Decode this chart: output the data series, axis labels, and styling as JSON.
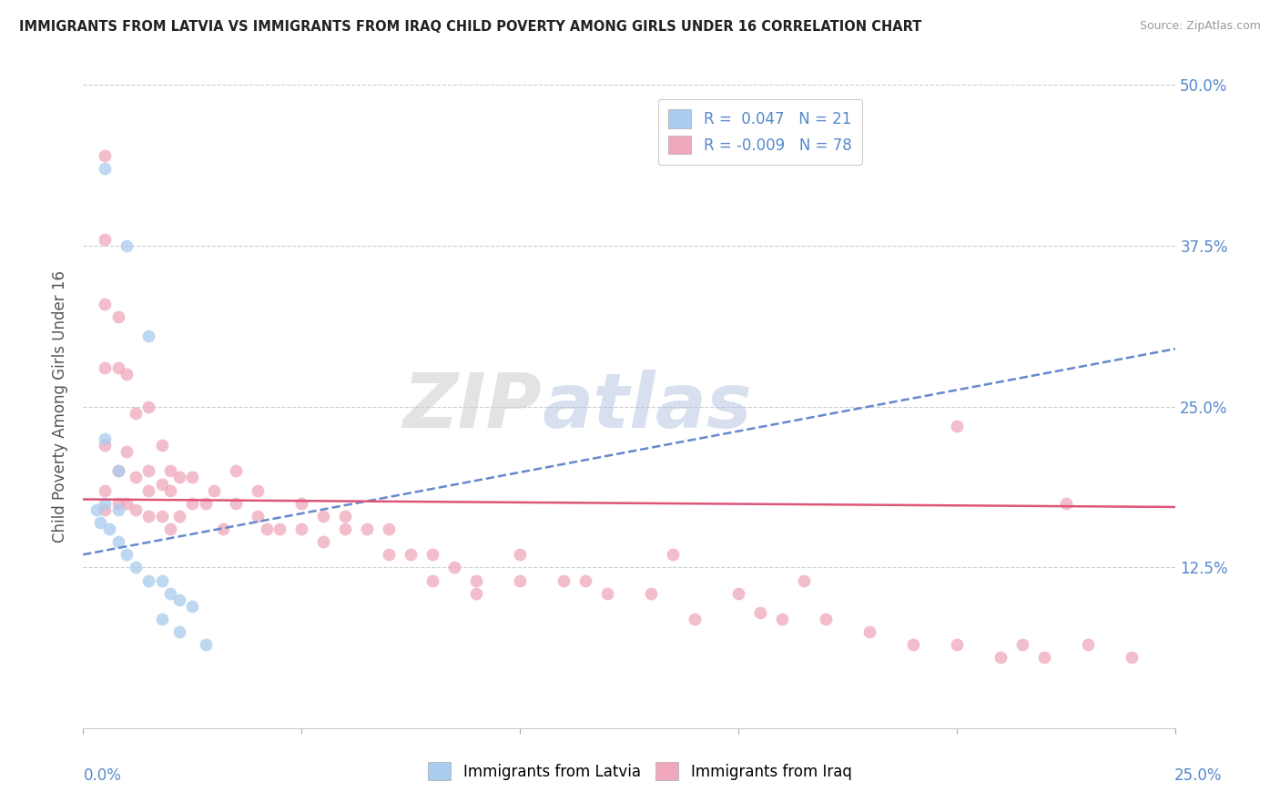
{
  "title": "IMMIGRANTS FROM LATVIA VS IMMIGRANTS FROM IRAQ CHILD POVERTY AMONG GIRLS UNDER 16 CORRELATION CHART",
  "source": "Source: ZipAtlas.com",
  "ylabel": "Child Poverty Among Girls Under 16",
  "xlim": [
    0.0,
    0.25
  ],
  "ylim": [
    0.0,
    0.5
  ],
  "yticks": [
    0.0,
    0.125,
    0.25,
    0.375,
    0.5
  ],
  "ytick_labels": [
    "",
    "12.5%",
    "25.0%",
    "37.5%",
    "50.0%"
  ],
  "grid_color": "#c8c8c8",
  "background_color": "#ffffff",
  "latvia_color": "#aaccee",
  "iraq_color": "#f0a8bc",
  "trend_latvia_color": "#6688cc",
  "trend_iraq_color": "#dd5577",
  "scatter_alpha": 0.75,
  "scatter_size": 100,
  "latvia_x": [
    0.005,
    0.01,
    0.015,
    0.005,
    0.008,
    0.005,
    0.003,
    0.008,
    0.004,
    0.006,
    0.008,
    0.01,
    0.012,
    0.015,
    0.018,
    0.02,
    0.022,
    0.025,
    0.018,
    0.022,
    0.028
  ],
  "latvia_y": [
    0.435,
    0.375,
    0.305,
    0.225,
    0.2,
    0.175,
    0.17,
    0.17,
    0.16,
    0.155,
    0.145,
    0.135,
    0.125,
    0.115,
    0.115,
    0.105,
    0.1,
    0.095,
    0.085,
    0.075,
    0.065
  ],
  "iraq_x": [
    0.005,
    0.005,
    0.005,
    0.005,
    0.005,
    0.005,
    0.005,
    0.008,
    0.008,
    0.008,
    0.008,
    0.01,
    0.01,
    0.01,
    0.012,
    0.012,
    0.012,
    0.015,
    0.015,
    0.015,
    0.015,
    0.018,
    0.018,
    0.018,
    0.02,
    0.02,
    0.02,
    0.022,
    0.022,
    0.025,
    0.025,
    0.028,
    0.03,
    0.032,
    0.035,
    0.035,
    0.04,
    0.04,
    0.042,
    0.045,
    0.05,
    0.05,
    0.055,
    0.055,
    0.06,
    0.06,
    0.065,
    0.07,
    0.07,
    0.075,
    0.08,
    0.08,
    0.085,
    0.09,
    0.09,
    0.1,
    0.1,
    0.11,
    0.115,
    0.12,
    0.13,
    0.135,
    0.14,
    0.15,
    0.155,
    0.16,
    0.165,
    0.17,
    0.18,
    0.19,
    0.2,
    0.21,
    0.215,
    0.22,
    0.23,
    0.24,
    0.2,
    0.225
  ],
  "iraq_y": [
    0.445,
    0.38,
    0.33,
    0.28,
    0.22,
    0.185,
    0.17,
    0.32,
    0.28,
    0.2,
    0.175,
    0.275,
    0.215,
    0.175,
    0.245,
    0.195,
    0.17,
    0.25,
    0.2,
    0.185,
    0.165,
    0.22,
    0.19,
    0.165,
    0.2,
    0.185,
    0.155,
    0.195,
    0.165,
    0.195,
    0.175,
    0.175,
    0.185,
    0.155,
    0.2,
    0.175,
    0.185,
    0.165,
    0.155,
    0.155,
    0.175,
    0.155,
    0.165,
    0.145,
    0.165,
    0.155,
    0.155,
    0.155,
    0.135,
    0.135,
    0.135,
    0.115,
    0.125,
    0.105,
    0.115,
    0.135,
    0.115,
    0.115,
    0.115,
    0.105,
    0.105,
    0.135,
    0.085,
    0.105,
    0.09,
    0.085,
    0.115,
    0.085,
    0.075,
    0.065,
    0.065,
    0.055,
    0.065,
    0.055,
    0.065,
    0.055,
    0.235,
    0.175
  ],
  "trend_latvia_x0": 0.0,
  "trend_latvia_y0": 0.135,
  "trend_latvia_x1": 0.25,
  "trend_latvia_y1": 0.295,
  "trend_iraq_x0": 0.0,
  "trend_iraq_y0": 0.178,
  "trend_iraq_x1": 0.25,
  "trend_iraq_y1": 0.172
}
